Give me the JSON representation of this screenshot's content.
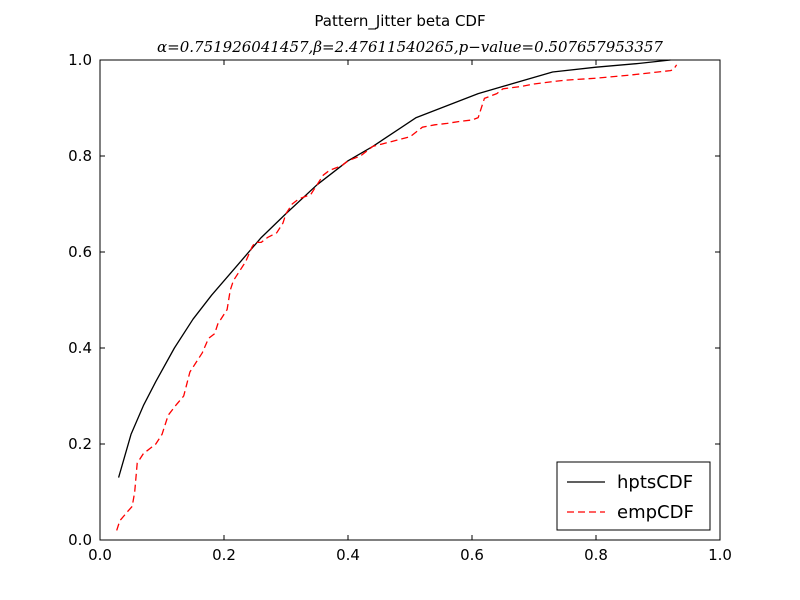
{
  "chart_data": {
    "type": "line",
    "title": "Pattern_Jitter beta CDF",
    "subtitle": "α=0.751926041457,β=2.47611540265,p−value=0.507657953357",
    "xlabel": "",
    "ylabel": "",
    "xlim": [
      0.0,
      1.0
    ],
    "ylim": [
      0.0,
      1.0
    ],
    "xticks": [
      0.0,
      0.2,
      0.4,
      0.6,
      0.8,
      1.0
    ],
    "yticks": [
      0.0,
      0.2,
      0.4,
      0.6,
      0.8,
      1.0
    ],
    "xtick_labels": [
      "0.0",
      "0.2",
      "0.4",
      "0.6",
      "0.8",
      "1.0"
    ],
    "ytick_labels": [
      "0.0",
      "0.2",
      "0.4",
      "0.6",
      "0.8",
      "1.0"
    ],
    "grid": false,
    "legend_position": "bottom-right",
    "series": [
      {
        "name": "hptsCDF",
        "color": "#000000",
        "style": "solid",
        "x": [
          0.03,
          0.05,
          0.07,
          0.09,
          0.12,
          0.15,
          0.18,
          0.22,
          0.26,
          0.3,
          0.35,
          0.4,
          0.44,
          0.51,
          0.56,
          0.61,
          0.65,
          0.73,
          0.8,
          0.87,
          0.92
        ],
        "y": [
          0.13,
          0.22,
          0.28,
          0.33,
          0.4,
          0.46,
          0.51,
          0.57,
          0.63,
          0.68,
          0.74,
          0.79,
          0.82,
          0.88,
          0.905,
          0.93,
          0.945,
          0.975,
          0.985,
          0.993,
          1.0
        ]
      },
      {
        "name": "empCDF",
        "color": "#ff0000",
        "style": "dashed",
        "x": [
          0.027,
          0.032,
          0.045,
          0.052,
          0.056,
          0.06,
          0.07,
          0.09,
          0.1,
          0.11,
          0.122,
          0.135,
          0.145,
          0.155,
          0.165,
          0.175,
          0.185,
          0.19,
          0.2,
          0.205,
          0.21,
          0.215,
          0.23,
          0.235,
          0.245,
          0.25,
          0.26,
          0.27,
          0.285,
          0.295,
          0.3,
          0.305,
          0.31,
          0.32,
          0.34,
          0.35,
          0.36,
          0.37,
          0.39,
          0.4,
          0.42,
          0.43,
          0.44,
          0.47,
          0.5,
          0.51,
          0.52,
          0.54,
          0.56,
          0.58,
          0.6,
          0.61,
          0.62,
          0.64,
          0.65,
          0.68,
          0.7,
          0.73,
          0.75,
          0.8,
          0.85,
          0.9,
          0.92,
          0.925,
          0.93
        ],
        "y": [
          0.02,
          0.04,
          0.06,
          0.07,
          0.1,
          0.16,
          0.18,
          0.2,
          0.22,
          0.26,
          0.28,
          0.3,
          0.35,
          0.37,
          0.39,
          0.42,
          0.43,
          0.45,
          0.47,
          0.48,
          0.52,
          0.54,
          0.57,
          0.58,
          0.61,
          0.62,
          0.62,
          0.63,
          0.64,
          0.66,
          0.68,
          0.69,
          0.7,
          0.71,
          0.72,
          0.74,
          0.76,
          0.77,
          0.78,
          0.79,
          0.8,
          0.81,
          0.82,
          0.83,
          0.84,
          0.85,
          0.86,
          0.865,
          0.868,
          0.872,
          0.875,
          0.88,
          0.92,
          0.93,
          0.94,
          0.945,
          0.95,
          0.955,
          0.958,
          0.962,
          0.968,
          0.975,
          0.978,
          0.98,
          0.99
        ]
      }
    ]
  }
}
